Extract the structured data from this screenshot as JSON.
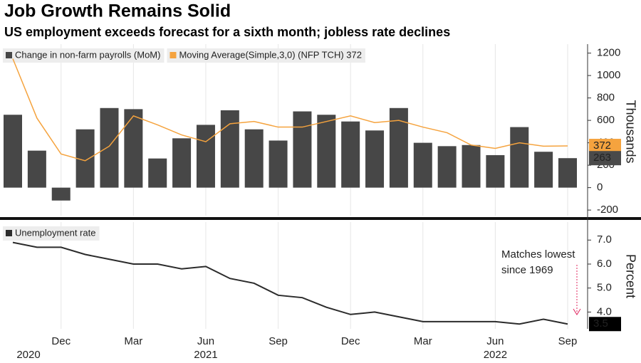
{
  "chart_data": [
    {
      "type": "bar",
      "title": "Job Growth Remains Solid",
      "subtitle": "US employment exceeds forecast for a sixth month; jobless rate declines",
      "y_label": "Thousands",
      "ylim": [
        -250,
        1280
      ],
      "yticks": [
        -200,
        0,
        200,
        400,
        600,
        800,
        1000,
        1200
      ],
      "series": [
        {
          "name": "Change in non-farm payrolls (MoM)",
          "color": "#474747",
          "values": [
            650,
            330,
            -115,
            520,
            710,
            700,
            260,
            440,
            560,
            690,
            520,
            420,
            680,
            650,
            590,
            510,
            710,
            400,
            370,
            380,
            290,
            540,
            320,
            263
          ]
        },
        {
          "name": "Moving Average(Simple,3,0) (NFP TCH) 372",
          "type": "line",
          "color": "#f5a33e",
          "values": [
            1150,
            620,
            300,
            240,
            370,
            640,
            560,
            470,
            410,
            570,
            590,
            540,
            540,
            590,
            640,
            580,
            600,
            540,
            490,
            380,
            350,
            400,
            370,
            372
          ]
        }
      ]
    },
    {
      "type": "line",
      "y_label": "Percent",
      "ylim": [
        3.3,
        7.75
      ],
      "yticks": [
        {
          "value": 4,
          "label": "4.0"
        },
        {
          "value": 5,
          "label": "5.0"
        },
        {
          "value": 6,
          "label": "6.0"
        },
        {
          "value": 7,
          "label": "7.0"
        }
      ],
      "categories": [
        null,
        null,
        "Dec",
        null,
        null,
        "Mar",
        null,
        null,
        "Jun",
        null,
        null,
        "Sep",
        null,
        null,
        "Dec",
        null,
        null,
        "Mar",
        null,
        null,
        "Jun",
        null,
        null,
        "Sep"
      ],
      "years": [
        null,
        null,
        "2020",
        null,
        null,
        null,
        null,
        null,
        "2021",
        null,
        null,
        null,
        null,
        null,
        null,
        null,
        null,
        null,
        null,
        null,
        "2022",
        null,
        null,
        null
      ],
      "annotation": "Matches lowest since 1969",
      "series": [
        {
          "name": "Unemployment rate",
          "color": "#2b2b2b",
          "values": [
            6.9,
            6.7,
            6.7,
            6.4,
            6.2,
            6.0,
            6.0,
            5.8,
            5.9,
            5.4,
            5.2,
            4.7,
            4.6,
            4.2,
            3.9,
            4.0,
            3.8,
            3.6,
            3.6,
            3.6,
            3.6,
            3.5,
            3.7,
            3.5
          ]
        }
      ]
    }
  ]
}
